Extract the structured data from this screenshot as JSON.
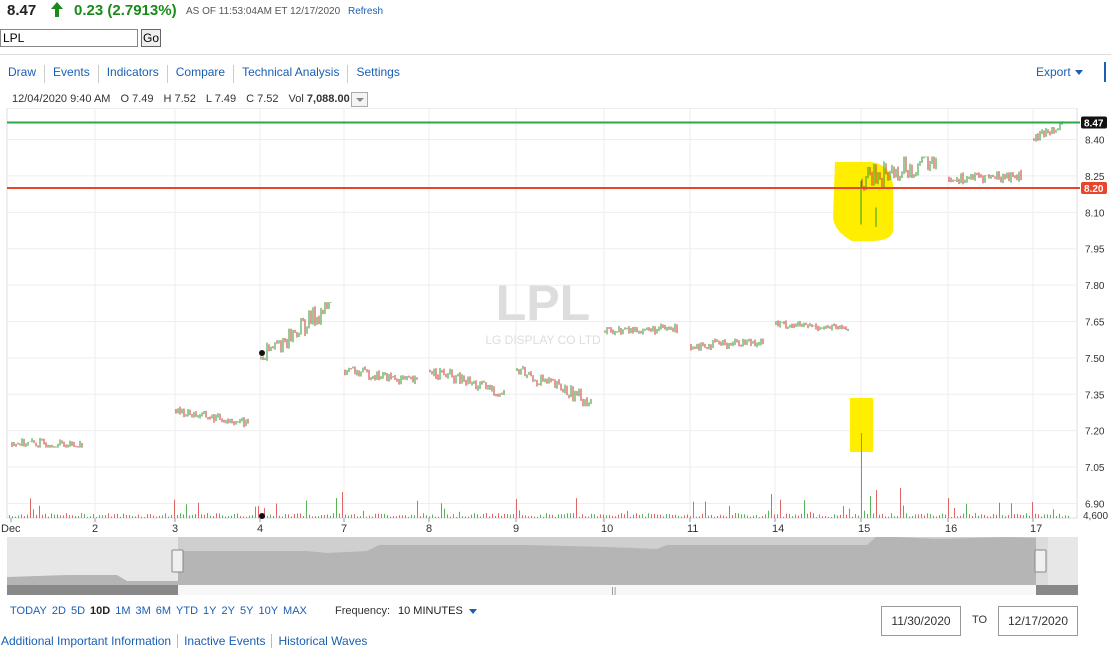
{
  "quote": {
    "price": "8.47",
    "change": "0.23 (2.7913%)",
    "as_of": "AS OF 11:53:04AM ET 12/17/2020",
    "refresh": "Refresh"
  },
  "symbol_input": {
    "value": "LPL",
    "go_label": "Go"
  },
  "toolbar": {
    "items": [
      "Draw",
      "Events",
      "Indicators",
      "Compare",
      "Technical Analysis",
      "Settings"
    ],
    "export": "Export"
  },
  "ohlc_bar": {
    "datetime": "12/04/2020 9:40 AM",
    "open": "O 7.49",
    "high": "H 7.52",
    "low": "L 7.49",
    "close": "C 7.52",
    "vol_label": "Vol",
    "vol_value": "7,088.00"
  },
  "chart_data": {
    "type": "candlestick",
    "watermark_symbol": "LPL",
    "watermark_name": "LG DISPLAY CO LTD",
    "y_ticks": [
      8.4,
      8.25,
      8.1,
      7.95,
      7.8,
      7.65,
      7.5,
      7.35,
      7.2,
      7.05,
      6.9
    ],
    "y_tick_labels": [
      "8.40",
      "8.25",
      "8.10",
      "7.95",
      "7.80",
      "7.65",
      "7.50",
      "7.35",
      "7.20",
      "7.05",
      "6.90"
    ],
    "ylim": [
      6.84,
      8.53
    ],
    "x_labels": [
      "Dec",
      "2",
      "3",
      "4",
      "7",
      "8",
      "9",
      "10",
      "11",
      "14",
      "15",
      "16",
      "17"
    ],
    "volume_max_label": "4,600",
    "horizontal_lines": [
      {
        "value": 8.47,
        "label": "8.47",
        "color": "#2aa84a",
        "label_bg": "#111111"
      },
      {
        "value": 8.2,
        "label": "8.20",
        "color": "#e8452a",
        "label_bg": "#e8452a"
      }
    ],
    "event_markers": [
      {
        "day": "4",
        "value": 7.52
      }
    ],
    "sessions": [
      {
        "day": "Dec",
        "start": 7.15,
        "end": 7.14,
        "high": 7.22,
        "low": 7.13
      },
      {
        "day": "3",
        "start": 7.28,
        "end": 7.23,
        "high": 7.3,
        "low": 7.21
      },
      {
        "day": "4",
        "start": 7.5,
        "end": 7.72,
        "high": 7.73,
        "low": 7.48
      },
      {
        "day": "7",
        "start": 7.45,
        "end": 7.4,
        "high": 7.49,
        "low": 7.38
      },
      {
        "day": "8",
        "start": 7.45,
        "end": 7.35,
        "high": 7.48,
        "low": 7.34
      },
      {
        "day": "9",
        "start": 7.45,
        "end": 7.32,
        "high": 7.47,
        "low": 7.3
      },
      {
        "day": "10",
        "start": 7.61,
        "end": 7.62,
        "high": 7.67,
        "low": 7.58
      },
      {
        "day": "11",
        "start": 7.55,
        "end": 7.57,
        "high": 7.58,
        "low": 7.49
      },
      {
        "day": "14",
        "start": 7.64,
        "end": 7.62,
        "high": 7.66,
        "low": 7.59
      },
      {
        "day": "15",
        "start": 8.23,
        "end": 8.32,
        "high": 8.33,
        "low": 8.04
      },
      {
        "day": "16",
        "start": 8.24,
        "end": 8.25,
        "high": 8.28,
        "low": 8.16
      },
      {
        "day": "17",
        "start": 8.4,
        "end": 8.47,
        "high": 8.48,
        "low": 8.38
      }
    ],
    "highlight_color": "#ffee00"
  },
  "navigator": {
    "handle_color": "#bdbdbd"
  },
  "range_buttons": {
    "items": [
      "TODAY",
      "2D",
      "5D",
      "10D",
      "1M",
      "3M",
      "6M",
      "YTD",
      "1Y",
      "2Y",
      "5Y",
      "10Y",
      "MAX"
    ],
    "selected": "10D"
  },
  "frequency": {
    "label": "Frequency:",
    "value": "10 MINUTES"
  },
  "date_range": {
    "from": "11/30/2020",
    "to_label": "TO",
    "to": "12/17/2020"
  },
  "links": [
    "Additional Important Information",
    "Inactive Events",
    "Historical Waves"
  ]
}
